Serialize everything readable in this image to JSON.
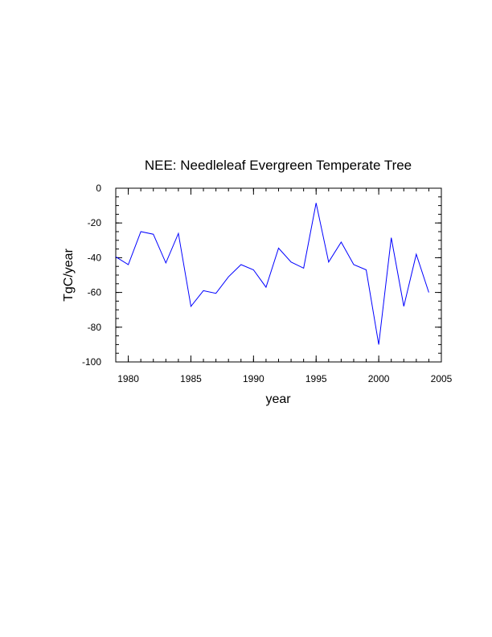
{
  "chart_data": {
    "type": "line",
    "title": "NEE: Needleleaf Evergreen Temperate Tree",
    "xlabel": "year",
    "ylabel": "TgC/year",
    "xlim": [
      1979,
      2005
    ],
    "ylim": [
      -100,
      0
    ],
    "x_ticks": [
      1980,
      1985,
      1990,
      1995,
      2000,
      2005
    ],
    "y_ticks": [
      0,
      -20,
      -40,
      -60,
      -80,
      -100
    ],
    "grid": false,
    "series": [
      {
        "name": "NEE",
        "color": "#0000ff",
        "x": [
          1979,
          1980,
          1981,
          1982,
          1983,
          1984,
          1985,
          1986,
          1987,
          1988,
          1989,
          1990,
          1991,
          1992,
          1993,
          1994,
          1995,
          1996,
          1997,
          1998,
          1999,
          2000,
          2001,
          2002,
          2003,
          2004
        ],
        "values": [
          -39.5,
          -44,
          -25,
          -26.5,
          -43,
          -26,
          -68,
          -59,
          -60.5,
          -51,
          -44,
          -47,
          -57,
          -34.5,
          -42.5,
          -46,
          -8.5,
          -42.5,
          -31,
          -44,
          -47,
          -90,
          -28.5,
          -68,
          -38,
          -60
        ]
      }
    ]
  }
}
